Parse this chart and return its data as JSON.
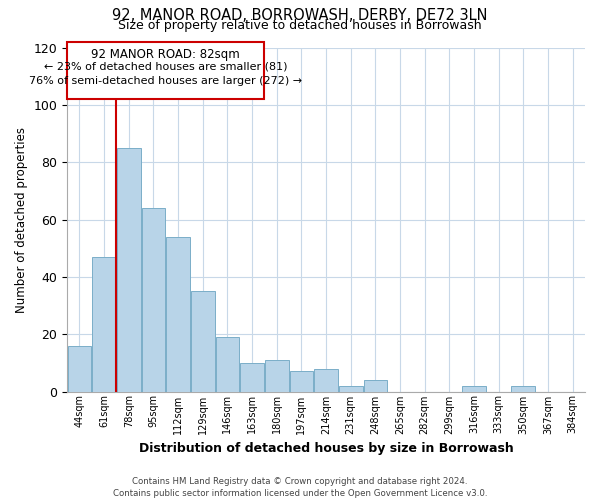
{
  "title": "92, MANOR ROAD, BORROWASH, DERBY, DE72 3LN",
  "subtitle": "Size of property relative to detached houses in Borrowash",
  "xlabel": "Distribution of detached houses by size in Borrowash",
  "ylabel": "Number of detached properties",
  "bin_labels": [
    "44sqm",
    "61sqm",
    "78sqm",
    "95sqm",
    "112sqm",
    "129sqm",
    "146sqm",
    "163sqm",
    "180sqm",
    "197sqm",
    "214sqm",
    "231sqm",
    "248sqm",
    "265sqm",
    "282sqm",
    "299sqm",
    "316sqm",
    "333sqm",
    "350sqm",
    "367sqm",
    "384sqm"
  ],
  "bin_edges": [
    44,
    61,
    78,
    95,
    112,
    129,
    146,
    163,
    180,
    197,
    214,
    231,
    248,
    265,
    282,
    299,
    316,
    333,
    350,
    367,
    384
  ],
  "bar_heights": [
    16,
    47,
    85,
    64,
    54,
    35,
    19,
    10,
    11,
    7,
    8,
    2,
    4,
    0,
    0,
    0,
    2,
    0,
    2,
    0,
    0
  ],
  "bar_color": "#b8d4e8",
  "bar_edge_color": "#7aaec8",
  "reference_line_x": 78,
  "reference_line_color": "#cc0000",
  "ylim": [
    0,
    120
  ],
  "yticks": [
    0,
    20,
    40,
    60,
    80,
    100,
    120
  ],
  "annotation_title": "92 MANOR ROAD: 82sqm",
  "annotation_line1": "← 23% of detached houses are smaller (81)",
  "annotation_line2": "76% of semi-detached houses are larger (272) →",
  "footer_line1": "Contains HM Land Registry data © Crown copyright and database right 2024.",
  "footer_line2": "Contains public sector information licensed under the Open Government Licence v3.0.",
  "background_color": "#ffffff",
  "grid_color": "#c8d8e8",
  "title_fontsize": 10.5,
  "subtitle_fontsize": 9
}
